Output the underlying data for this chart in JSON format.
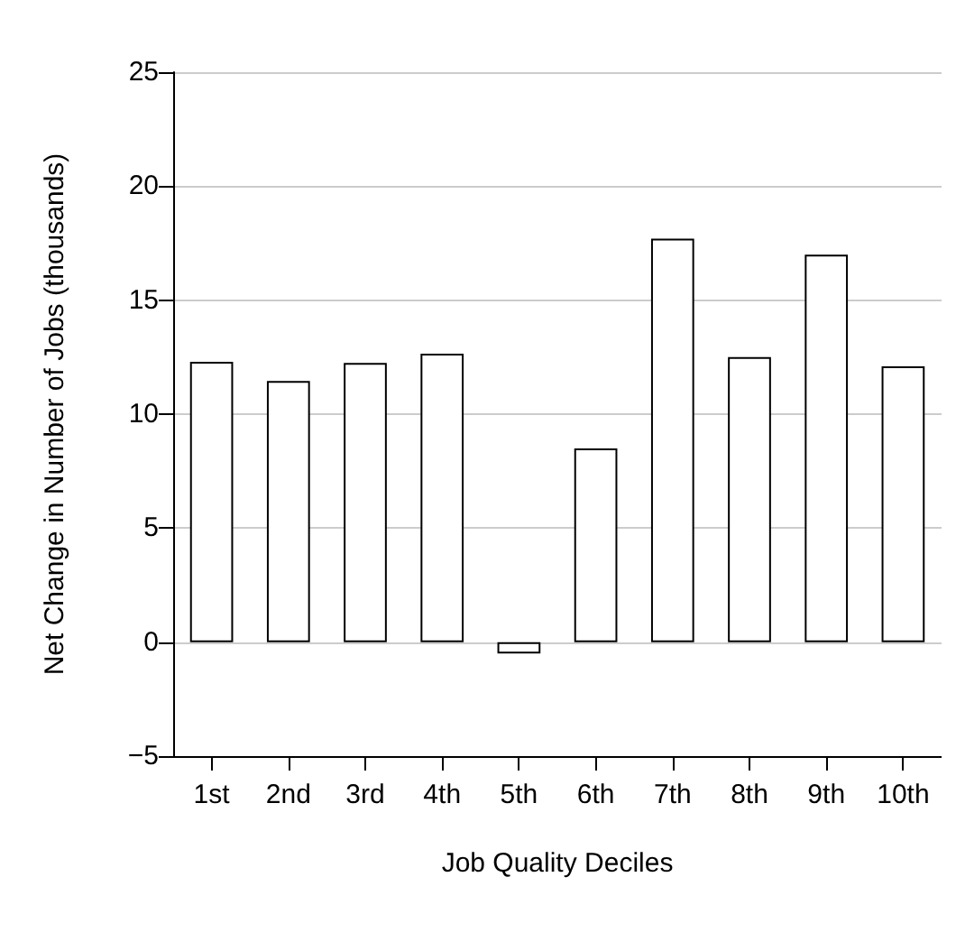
{
  "chart_data": {
    "type": "bar",
    "xlabel": "Job Quality Deciles",
    "ylabel": "Net Change in Number of Jobs (thousands)",
    "categories": [
      "1st",
      "2nd",
      "3rd",
      "4th",
      "5th",
      "6th",
      "7th",
      "8th",
      "9th",
      "10th"
    ],
    "values": [
      12.3,
      11.45,
      12.25,
      12.65,
      -0.5,
      8.5,
      17.7,
      12.5,
      17.0,
      12.1
    ],
    "color": "#ffffff",
    "ylim": [
      -5,
      25
    ],
    "yticks": [
      -5,
      0,
      5,
      10,
      15,
      20,
      25
    ],
    "grid": "y"
  }
}
